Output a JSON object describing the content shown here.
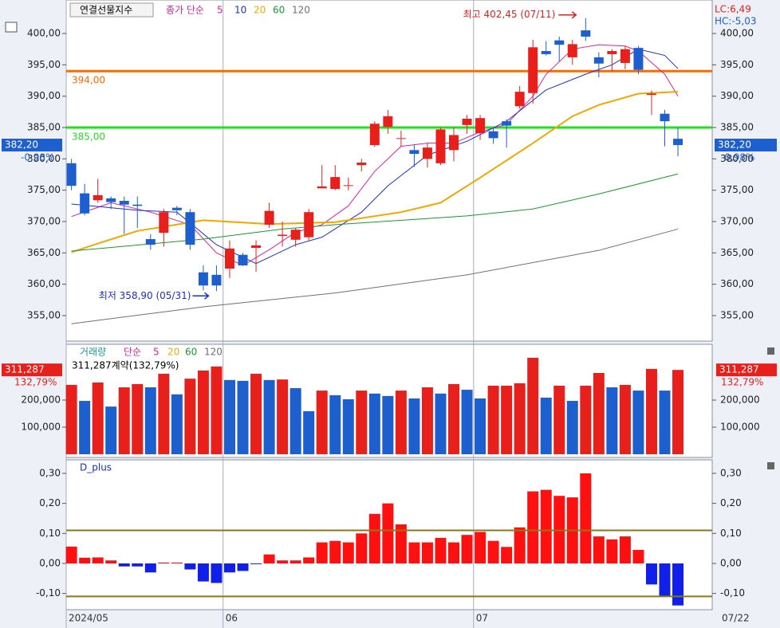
{
  "chart_data": [
    {
      "type": "candlestick",
      "title": "연결선물지수",
      "ma_label": "종가 단순",
      "ma_periods": [
        "5",
        "10",
        "20",
        "60",
        "120"
      ],
      "lc": "LC:6,49",
      "hc": "HC:-5,03",
      "ylim": [
        350.93,
        405.34
      ],
      "yticks": [
        {
          "value": 400,
          "label": "400,00"
        },
        {
          "value": 395,
          "label": "395,00"
        },
        {
          "value": 390,
          "label": "390,00"
        },
        {
          "value": 385,
          "label": "385,00"
        },
        {
          "value": 380,
          "label": "380,00"
        },
        {
          "value": 375,
          "label": "375,00"
        },
        {
          "value": 370,
          "label": "370,00"
        },
        {
          "value": 365,
          "label": "365,00"
        },
        {
          "value": 360,
          "label": "360,00"
        },
        {
          "value": 355,
          "label": "355,00"
        }
      ],
      "xlim": [
        -0.4,
        48.6
      ],
      "xticks": [
        {
          "value": -0.4,
          "label": "2024/05"
        },
        {
          "value": 11.5,
          "label": "06"
        },
        {
          "value": 30.5,
          "label": "07"
        }
      ],
      "last_date": "07/22",
      "up_color": "#e8201c",
      "down_color": "#1e5fcf",
      "open": [
        379.3,
        374.5,
        373.4,
        373.7,
        373.3,
        372.7,
        367.2,
        368.2,
        372.2,
        371.5,
        361.9,
        361.5,
        362.5,
        364.7,
        365.8,
        369.5,
        367.7,
        367.1,
        367.5,
        375.3,
        375.2,
        375.8,
        379,
        382.2,
        385.1,
        383.2,
        381.4,
        380,
        379.3,
        381.4,
        385.4,
        384.1,
        384.4,
        386,
        388.4,
        390.5,
        397.2,
        398.9,
        396.2,
        400.5,
        396.2,
        396.7,
        395.3,
        397.7,
        390.2,
        387.2,
        383.2
      ],
      "high": [
        380,
        376,
        376.8,
        374,
        374,
        374,
        368,
        372,
        372.5,
        372,
        363,
        363,
        367,
        365,
        367,
        373,
        370,
        369,
        372,
        379,
        379,
        377,
        380,
        386,
        387.8,
        384.5,
        382.2,
        382.5,
        385,
        385,
        387,
        387,
        385,
        386.3,
        391.6,
        399,
        398.8,
        399.5,
        399,
        402.45,
        397,
        397.5,
        398,
        398,
        390.9,
        387.8,
        385
      ],
      "low": [
        375,
        371,
        373,
        372,
        368,
        369,
        365.5,
        366,
        371,
        365.5,
        359,
        358.9,
        361,
        363,
        362,
        369,
        366,
        366,
        367,
        375.3,
        375,
        375,
        378,
        381.9,
        384,
        382,
        378.7,
        378.6,
        379,
        379.6,
        384,
        383,
        382.4,
        381.8,
        388,
        388.8,
        396.5,
        395.5,
        395,
        398.8,
        393,
        394,
        394.3,
        393.5,
        387,
        382,
        380.4
      ],
      "close": [
        375.7,
        371.3,
        374.2,
        373.1,
        372.7,
        372.5,
        366.3,
        371.5,
        371.8,
        366.3,
        359.8,
        359.8,
        365.7,
        363,
        366.2,
        371.7,
        367.9,
        368.7,
        371.5,
        375.6,
        377.1,
        375.8,
        379.4,
        385.6,
        386.8,
        383.3,
        380.8,
        381.8,
        384.7,
        383.8,
        386.4,
        386.5,
        383.3,
        385.3,
        390.7,
        397.8,
        396.7,
        398.2,
        398.3,
        399.5,
        395.2,
        397.2,
        397.5,
        394.2,
        390.4,
        386,
        382.2
      ],
      "ma": [
        {
          "name": "5",
          "color": "#e0229a",
          "x": [
            0,
            3,
            6,
            9,
            11,
            13,
            15,
            17,
            19,
            21,
            23,
            25,
            27,
            29,
            31,
            33,
            35,
            36,
            38,
            40,
            42,
            43,
            45,
            46
          ],
          "values": [
            370.8,
            373,
            371.5,
            369.5,
            365,
            363,
            365.5,
            368.3,
            369.5,
            372.5,
            378,
            382,
            382.5,
            382.5,
            384.3,
            385.5,
            390,
            393.5,
            397.5,
            398.2,
            398,
            397.2,
            393.5,
            390
          ]
        },
        {
          "name": "10",
          "color": "#1a2fd0",
          "x": [
            0,
            5,
            8,
            11,
            14,
            17,
            19,
            22,
            24,
            27,
            30,
            33,
            36,
            39,
            41,
            43,
            45,
            46
          ],
          "values": [
            372.8,
            371.8,
            371.5,
            366.3,
            363.3,
            366.3,
            367.5,
            371.5,
            375.7,
            380.6,
            382.8,
            386,
            391,
            393.5,
            395,
            397.5,
            396.5,
            394.4
          ]
        },
        {
          "name": "20",
          "color": "#f0a800",
          "x": [
            0,
            2,
            5,
            10,
            15,
            20,
            25,
            28,
            31,
            35,
            38,
            40,
            43,
            46
          ],
          "values": [
            365.1,
            366.5,
            368.5,
            370.2,
            369.6,
            369.9,
            371.5,
            373,
            377,
            382.5,
            386.8,
            388.6,
            390.4,
            390.7
          ]
        },
        {
          "name": "60",
          "color": "#1a9a2a",
          "x": [
            0,
            10,
            16,
            20,
            30,
            35,
            40,
            46
          ],
          "values": [
            365.3,
            367.2,
            368.8,
            369.5,
            370.9,
            372,
            374.4,
            377.6
          ]
        },
        {
          "name": "120",
          "color": "#707070",
          "x": [
            0,
            10,
            20,
            30,
            40,
            46
          ],
          "values": [
            353.7,
            356.4,
            358.6,
            361.5,
            365.4,
            368.8
          ]
        }
      ],
      "hlines": [
        {
          "value": 394,
          "label": "394,00",
          "color": "#ff6a00"
        },
        {
          "value": 385,
          "label": "385,00",
          "color": "#22e022"
        }
      ],
      "high_note": {
        "index": 39,
        "text": "최고 402,45 (07/11)"
      },
      "low_note": {
        "index": 11,
        "text": "최저 358,90 (05/31)"
      },
      "last_price": {
        "value": 382.2,
        "label": "382,20",
        "change": "-0,98%"
      }
    },
    {
      "type": "bar",
      "title": "거래량",
      "ma_label": "단순",
      "ma_periods": [
        "5",
        "20",
        "60",
        "120"
      ],
      "summary": "311,287계약(132,79%)",
      "last_label": "311,287",
      "last_ratio": "132,79%",
      "ylim": [
        -11800,
        405900
      ],
      "yticks": [
        {
          "value": 200000,
          "label": "200,000"
        },
        {
          "value": 100000,
          "label": "100,000"
        }
      ],
      "up_color": "#e8201c",
      "down_color": "#1e5fcf",
      "values": [
        256000,
        197000,
        265000,
        176000,
        247000,
        259000,
        247000,
        297000,
        221000,
        279000,
        309000,
        324000,
        274000,
        271000,
        297000,
        274000,
        276000,
        244000,
        159000,
        235000,
        218000,
        203000,
        235000,
        224000,
        215000,
        235000,
        206000,
        247000,
        224000,
        259000,
        238000,
        206000,
        253000,
        253000,
        262000,
        356000,
        209000,
        253000,
        197000,
        253000,
        300000,
        247000,
        256000,
        235000,
        315000,
        235000,
        311287
      ]
    },
    {
      "type": "bar",
      "title": "D_plus",
      "ylim": [
        -0.154,
        0.345
      ],
      "yticks": [
        {
          "value": 0.3,
          "label": "0,30"
        },
        {
          "value": 0.2,
          "label": "0,20"
        },
        {
          "value": 0.1,
          "label": "0,10"
        },
        {
          "value": 0,
          "label": "0,00"
        },
        {
          "value": -0.1,
          "label": "-0,10"
        }
      ],
      "hlines": [
        0.11,
        -0.11
      ],
      "up_color": "#ff1010",
      "down_color": "#1020e8",
      "values": [
        0.056,
        0.019,
        0.02,
        0.01,
        -0.01,
        -0.01,
        -0.03,
        0.003,
        0.003,
        -0.02,
        -0.06,
        -0.065,
        -0.03,
        -0.025,
        -0.002,
        0.03,
        0.01,
        0.01,
        0.02,
        0.07,
        0.075,
        0.07,
        0.1,
        0.165,
        0.2,
        0.13,
        0.07,
        0.07,
        0.085,
        0.07,
        0.095,
        0.105,
        0.075,
        0.055,
        0.12,
        0.24,
        0.245,
        0.225,
        0.22,
        0.3,
        0.09,
        0.08,
        0.09,
        0.045,
        -0.07,
        -0.11,
        -0.14
      ]
    }
  ]
}
